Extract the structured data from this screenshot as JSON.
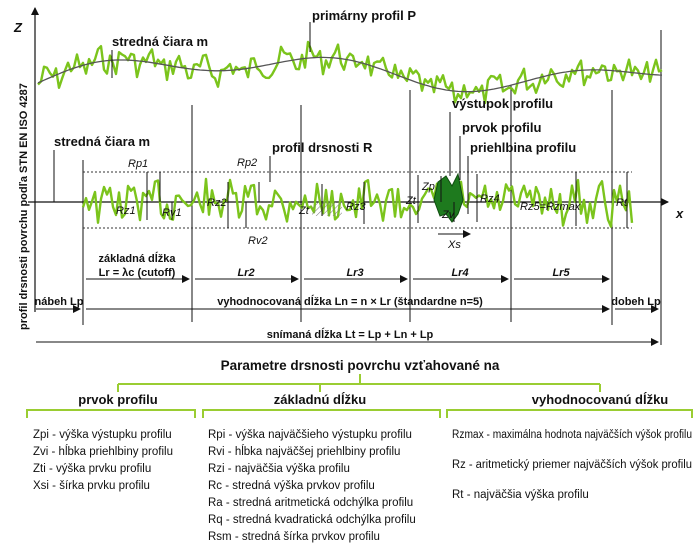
{
  "axes": {
    "z": "Z",
    "x": "x"
  },
  "vertical_label": "profil drsnosti povrchu podľa STN EN ISO 4287",
  "labels": {
    "primary_profile": "primárny profil P",
    "mean_line_top": "stredná čiara m",
    "mean_line_left": "stredná čiara m",
    "roughness_profile": "profil drsnosti R",
    "peak": "výstupok profilu",
    "element": "prvok profilu",
    "valley": "priehlbina profilu"
  },
  "callouts": {
    "Rp1": "Rp1",
    "Rz1": "Rz1",
    "Rv1": "Rv1",
    "Rp2": "Rp2",
    "Rz2": "Rz2",
    "Rv2": "Rv2",
    "Zt": "Zt",
    "Rz3": "Rz3",
    "Zp": "Zp",
    "Zv": "Zv",
    "Zt2": "Zt",
    "Xs": "Xs",
    "Rz4": "Rz4",
    "Rz5": "Rz5=Rzmax",
    "Rt": "Rt"
  },
  "segments": {
    "lr1_line1": "základná dĺžka",
    "lr1_line2": "Lr = λc (cutoff)",
    "lr2": "Lr2",
    "lr3": "Lr3",
    "lr4": "Lr4",
    "lr5": "Lr5",
    "run_in": "nábeh Lp",
    "evaluation": "vyhodnocovaná dĺžka Ln = n × Lr (štandardne n=5)",
    "run_out": "dobeh Lp",
    "traversing": "snímaná dĺžka Lt = Lp + Ln + Lp"
  },
  "legend": {
    "title": "Parametre drsnosti povrchu vzťahované na",
    "groups": [
      {
        "heading": "prvok profilu",
        "items": [
          "Zpi - výška výstupku profilu",
          "Zvi - hĺbka priehlbiny profilu",
          "Zti - výška prvku profilu",
          "Xsi - šírka prvku profilu"
        ]
      },
      {
        "heading": "základnú dĺžku",
        "items": [
          "Rpi - výška najväčšieho výstupku profilu",
          "Rvi - hĺbka najväčšej priehlbiny profilu",
          "Rzi - najväčšia výška profilu",
          "Rc - stredná výška prvkov profilu",
          "Ra - stredná aritmetická odchýlka profilu",
          "Rq - stredná kvadratická odchýlka profilu",
          "Rsm - stredná šírka prvkov profilu"
        ]
      },
      {
        "heading": "vyhodnocovanú dĺžku",
        "items": [
          "Rzmax - maximálna hodnota najväčších výšok profilu",
          "Rz - aritmetický priemer najväčších výšok profilu",
          "Rt - najväčšia výška profilu"
        ]
      }
    ]
  },
  "colors": {
    "profile": "#7bc41c",
    "mean_line": "#555555",
    "element_fill": "#1e7a1e",
    "legend_line": "#9acd32"
  }
}
